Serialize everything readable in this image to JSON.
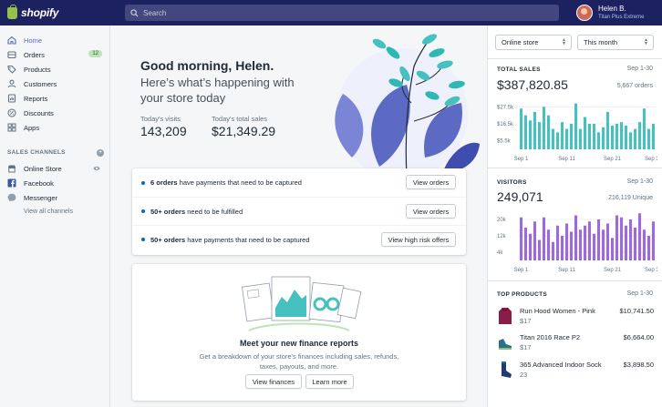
{
  "brand": {
    "name": "shopify"
  },
  "search": {
    "placeholder": "Search"
  },
  "user": {
    "name": "Helen B.",
    "store": "Titan Plus Extreme"
  },
  "sidebar": {
    "items": [
      {
        "label": "Home",
        "icon": "home-icon",
        "active": true
      },
      {
        "label": "Orders",
        "icon": "orders-icon",
        "badge": "12"
      },
      {
        "label": "Products",
        "icon": "products-icon"
      },
      {
        "label": "Customers",
        "icon": "customers-icon"
      },
      {
        "label": "Reports",
        "icon": "reports-icon"
      },
      {
        "label": "Discounts",
        "icon": "discounts-icon"
      },
      {
        "label": "Apps",
        "icon": "apps-icon"
      }
    ],
    "channels_label": "SALES CHANNELS",
    "channels": [
      {
        "label": "Online Store",
        "icon": "store-icon"
      },
      {
        "label": "Facebook",
        "icon": "facebook-icon"
      },
      {
        "label": "Messenger",
        "icon": "messenger-icon"
      }
    ],
    "view_all": "View all channels"
  },
  "main": {
    "greeting": "Good morning, Helen.",
    "subgreeting": "Here’s what’s happening with your store today",
    "visits_label": "Today's visits",
    "visits_value": "143,209",
    "sales_label": "Today's total sales",
    "sales_value": "$21,349.29",
    "tasks": [
      {
        "bold": "6 orders",
        "rest": " have payments that need to be captured",
        "button": "View orders"
      },
      {
        "bold": "50+ orders",
        "rest": " need to be fulfilled",
        "button": "View orders"
      },
      {
        "bold": "50+ orders",
        "rest": " have payments that need to be captured",
        "button": "View high risk offers"
      }
    ],
    "finance": {
      "title": "Meet your new finance reports",
      "description": "Get a breakdown of your store's finances including sales, refunds, taxes, payouts, and more.",
      "button_primary": "View finances",
      "button_secondary": "Learn more"
    }
  },
  "right": {
    "filter_channel": "Online store",
    "filter_period": "This month",
    "total_sales": {
      "title": "TOTAL SALES",
      "date": "Sep 1-30",
      "value": "$387,820.85",
      "orders": "5,667 orders",
      "yticks": [
        "$27.5k",
        "$16.5k",
        "$5.5k"
      ],
      "xticks": [
        "Sep 1",
        "Sep 11",
        "Sep 21",
        "Sep 30"
      ],
      "color": "#47c1bf"
    },
    "visitors": {
      "title": "VISITORS",
      "date": "Sep 1-30",
      "value": "249,071",
      "unique": "216,119 Unique",
      "yticks": [
        "20k",
        "12k",
        "4k"
      ],
      "xticks": [
        "Sep 1",
        "Sep 11",
        "Sep 21",
        "Sep 30"
      ],
      "color": "#9c6ade"
    },
    "top_products": {
      "title": "TOP PRODUCTS",
      "date": "Sep 1-30",
      "items": [
        {
          "name": "Run Hood Women - Pink",
          "count": "$17",
          "amount": "$10,741.50",
          "color": "#8a1c4a"
        },
        {
          "name": "Titan 2016 Race P2",
          "count": "$17",
          "amount": "$6,664.00",
          "color": "#2b6f8e"
        },
        {
          "name": "365 Advanced Indoor Sock",
          "count": "23",
          "amount": "$3,898.50",
          "color": "#1f3b73"
        }
      ]
    }
  },
  "chart_data": [
    {
      "type": "bar",
      "title": "TOTAL SALES",
      "categories": [
        "Sep 1",
        "Sep 2",
        "Sep 3",
        "Sep 4",
        "Sep 5",
        "Sep 6",
        "Sep 7",
        "Sep 8",
        "Sep 9",
        "Sep 10",
        "Sep 11",
        "Sep 12",
        "Sep 13",
        "Sep 14",
        "Sep 15",
        "Sep 16",
        "Sep 17",
        "Sep 18",
        "Sep 19",
        "Sep 20",
        "Sep 21",
        "Sep 22",
        "Sep 23",
        "Sep 24",
        "Sep 25",
        "Sep 26",
        "Sep 27",
        "Sep 28",
        "Sep 29",
        "Sep 30"
      ],
      "values": [
        24,
        20,
        17,
        22,
        16,
        25,
        20,
        12,
        10,
        16,
        12,
        15,
        27,
        12,
        19,
        15,
        15,
        10,
        13,
        22,
        14,
        15,
        16,
        14,
        10,
        12,
        16,
        24,
        12,
        15
      ],
      "ylim": [
        0,
        30
      ]
    },
    {
      "type": "bar",
      "title": "VISITORS",
      "categories": [
        "Sep 1",
        "Sep 2",
        "Sep 3",
        "Sep 4",
        "Sep 5",
        "Sep 6",
        "Sep 7",
        "Sep 8",
        "Sep 9",
        "Sep 10",
        "Sep 11",
        "Sep 12",
        "Sep 13",
        "Sep 14",
        "Sep 15",
        "Sep 16",
        "Sep 17",
        "Sep 18",
        "Sep 19",
        "Sep 20",
        "Sep 21",
        "Sep 22",
        "Sep 23",
        "Sep 24",
        "Sep 25",
        "Sep 26",
        "Sep 27",
        "Sep 28",
        "Sep 29",
        "Sep 30"
      ],
      "values": [
        21,
        16,
        13,
        19,
        10,
        21,
        15,
        9,
        17,
        12,
        18,
        14,
        22,
        15,
        17,
        19,
        13,
        20,
        15,
        18,
        11,
        22,
        21,
        17,
        20,
        16,
        23,
        15,
        12,
        19
      ],
      "ylim": [
        0,
        24
      ]
    }
  ]
}
